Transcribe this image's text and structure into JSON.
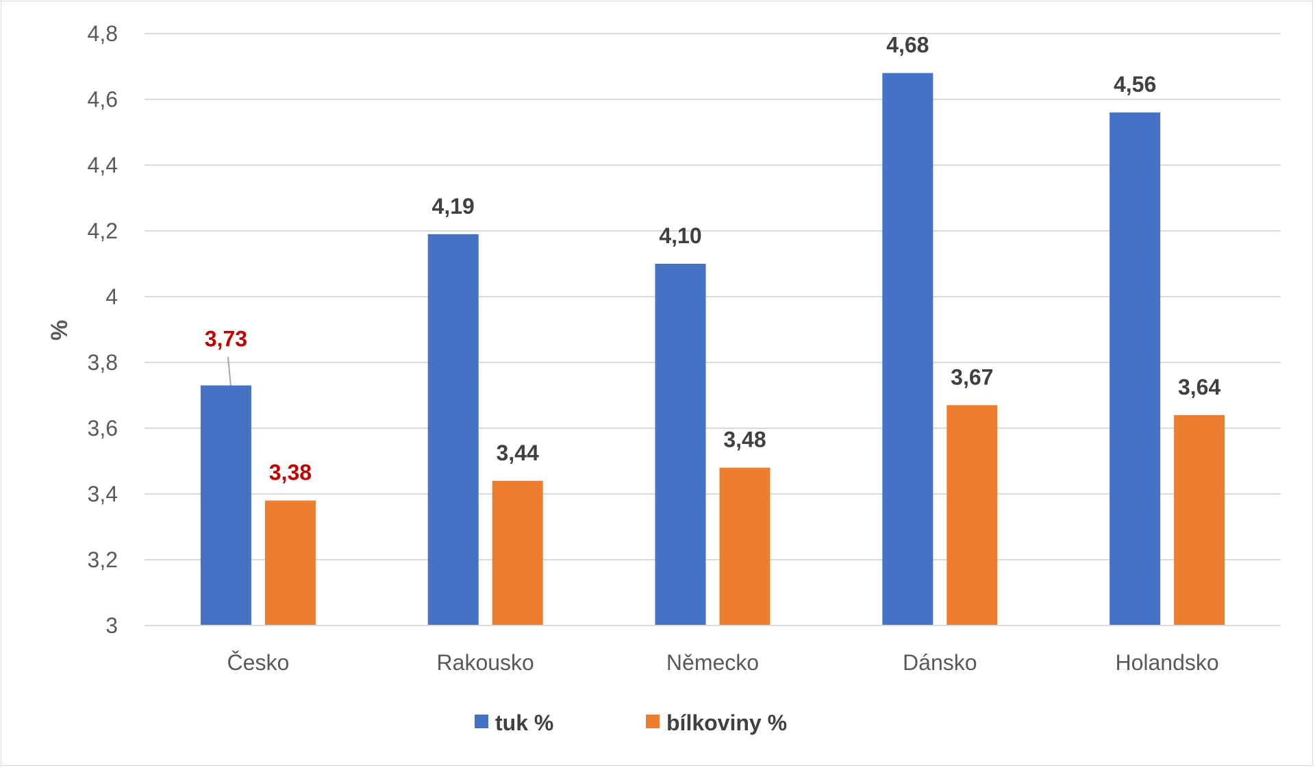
{
  "chart_data": {
    "type": "bar",
    "categories": [
      "Česko",
      "Rakousko",
      "Německo",
      "Dánsko",
      "Holandsko"
    ],
    "series": [
      {
        "name": "tuk %",
        "color": "#4472C4",
        "values": [
          3.73,
          4.19,
          4.1,
          4.68,
          4.56
        ],
        "labels": [
          "3,73",
          "4,19",
          "4,10",
          "4,68",
          "4,56"
        ]
      },
      {
        "name": "bílkoviny %",
        "color": "#ED7D31",
        "values": [
          3.38,
          3.44,
          3.48,
          3.67,
          3.64
        ],
        "labels": [
          "3,38",
          "3,44",
          "3,48",
          "3,67",
          "3,64"
        ]
      }
    ],
    "label_colors": [
      "#C00000",
      "#404040",
      "#404040",
      "#404040",
      "#404040"
    ],
    "ylabel": "%",
    "xlabel": "",
    "ylim": [
      3,
      4.8
    ],
    "yticks": [
      "3",
      "3,2",
      "3,4",
      "3,6",
      "3,8",
      "4",
      "4,2",
      "4,4",
      "4,6",
      "4,8"
    ],
    "grid": true,
    "legend_position": "bottom"
  }
}
